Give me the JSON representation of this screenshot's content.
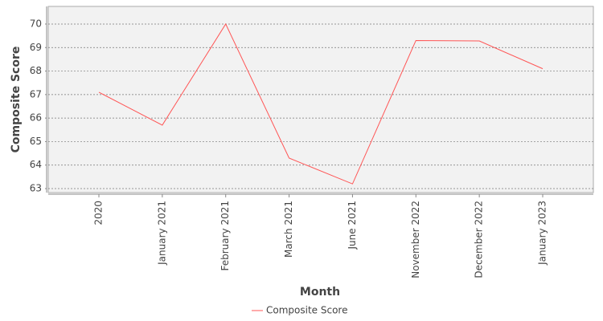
{
  "chart_data": {
    "type": "line",
    "x_label": "Month",
    "y_label": "Composite Score",
    "categories": [
      "2020",
      "January 2021",
      "February 2021",
      "March 2021",
      "June 2021",
      "November 2022",
      "December 2022",
      "January 2023"
    ],
    "series": [
      {
        "name": "Composite Score",
        "color": "#ff5555",
        "values": [
          67.1,
          65.7,
          70.0,
          64.3,
          63.2,
          69.3,
          69.28,
          68.1
        ]
      }
    ],
    "ylim": [
      62.83,
      70.75
    ],
    "yticks": [
      63,
      64,
      65,
      66,
      67,
      68,
      69,
      70
    ],
    "grid": true,
    "legend": "bottom"
  }
}
